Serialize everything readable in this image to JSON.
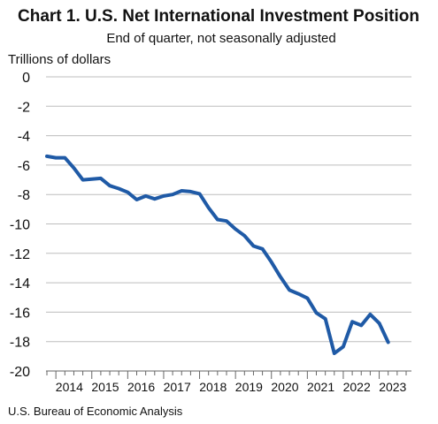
{
  "chart_data": {
    "type": "line",
    "title": "Chart 1. U.S. Net International Investment Position",
    "subtitle": "End of quarter, not seasonally adjusted",
    "ylabel": "Trillions of dollars",
    "source": "U.S. Bureau of Economic Analysis",
    "ylim": [
      -20,
      0
    ],
    "yticks": [
      0,
      -2,
      -4,
      -6,
      -8,
      -10,
      -12,
      -14,
      -16,
      -18,
      -20
    ],
    "x_year_labels": [
      "2014",
      "2015",
      "2016",
      "2017",
      "2018",
      "2019",
      "2020",
      "2021",
      "2022",
      "2023"
    ],
    "grid": true,
    "series": [
      {
        "color": "#1f5aa6",
        "x": [
          "2013Q4",
          "2014Q1",
          "2014Q2",
          "2014Q3",
          "2014Q4",
          "2015Q1",
          "2015Q2",
          "2015Q3",
          "2015Q4",
          "2016Q1",
          "2016Q2",
          "2016Q3",
          "2016Q4",
          "2017Q1",
          "2017Q2",
          "2017Q3",
          "2017Q4",
          "2018Q1",
          "2018Q2",
          "2018Q3",
          "2018Q4",
          "2019Q1",
          "2019Q2",
          "2019Q3",
          "2019Q4",
          "2020Q1",
          "2020Q2",
          "2020Q3",
          "2020Q4",
          "2021Q1",
          "2021Q2",
          "2021Q3",
          "2021Q4",
          "2022Q1",
          "2022Q2",
          "2022Q3",
          "2022Q4",
          "2023Q1",
          "2023Q2"
        ],
        "values": [
          -5.4,
          -5.5,
          -5.5,
          -6.2,
          -7.0,
          -6.95,
          -6.9,
          -7.4,
          -7.6,
          -7.85,
          -8.35,
          -8.1,
          -8.3,
          -8.1,
          -8.0,
          -7.75,
          -7.8,
          -7.95,
          -8.9,
          -9.7,
          -9.8,
          -10.35,
          -10.8,
          -11.5,
          -11.7,
          -12.6,
          -13.6,
          -14.5,
          -14.75,
          -15.05,
          -16.05,
          -16.45,
          -18.8,
          -18.35,
          -16.65,
          -16.9,
          -16.15,
          -16.75,
          -18.05
        ]
      }
    ]
  }
}
